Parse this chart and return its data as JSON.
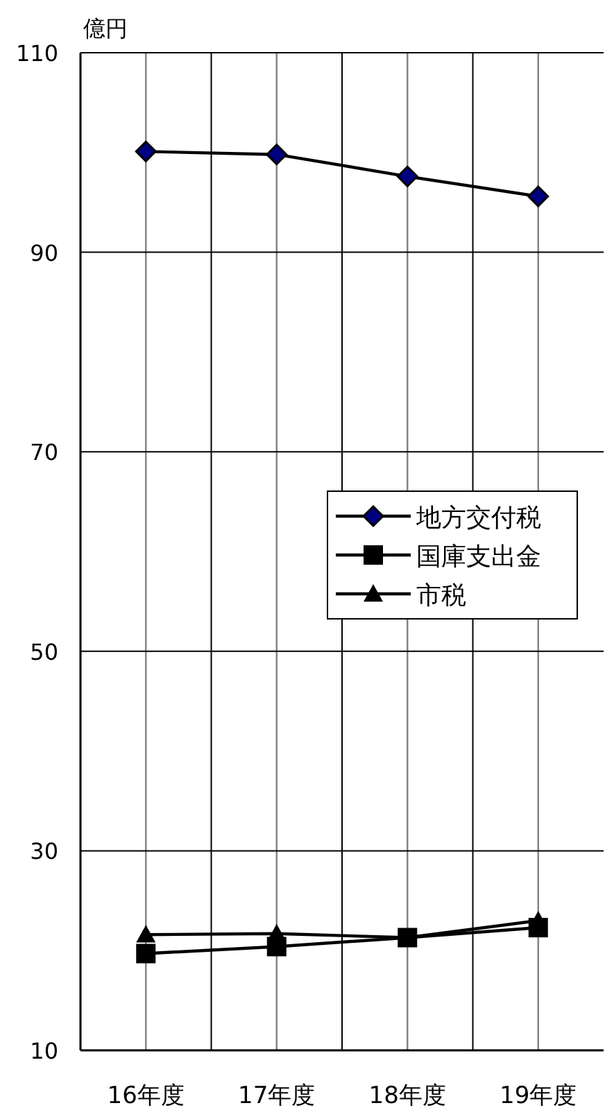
{
  "chart_data": {
    "type": "line",
    "ylabel": "億円",
    "categories": [
      "16年度",
      "17年度",
      "18年度",
      "19年度"
    ],
    "series": [
      {
        "name": "地方交付税",
        "color": "#000080",
        "marker": "diamond",
        "values": [
          100.1,
          99.8,
          97.6,
          95.6
        ]
      },
      {
        "name": "国庫支出金",
        "color": "#000000",
        "marker": "square",
        "values": [
          19.7,
          20.4,
          21.3,
          22.3
        ]
      },
      {
        "name": "市税",
        "color": "#000000",
        "marker": "triangle",
        "values": [
          21.6,
          21.7,
          21.3,
          23.0
        ]
      }
    ],
    "ylim": [
      10,
      110
    ],
    "yticks": [
      10,
      30,
      50,
      70,
      90,
      110
    ],
    "grid": true,
    "legend": "right"
  }
}
